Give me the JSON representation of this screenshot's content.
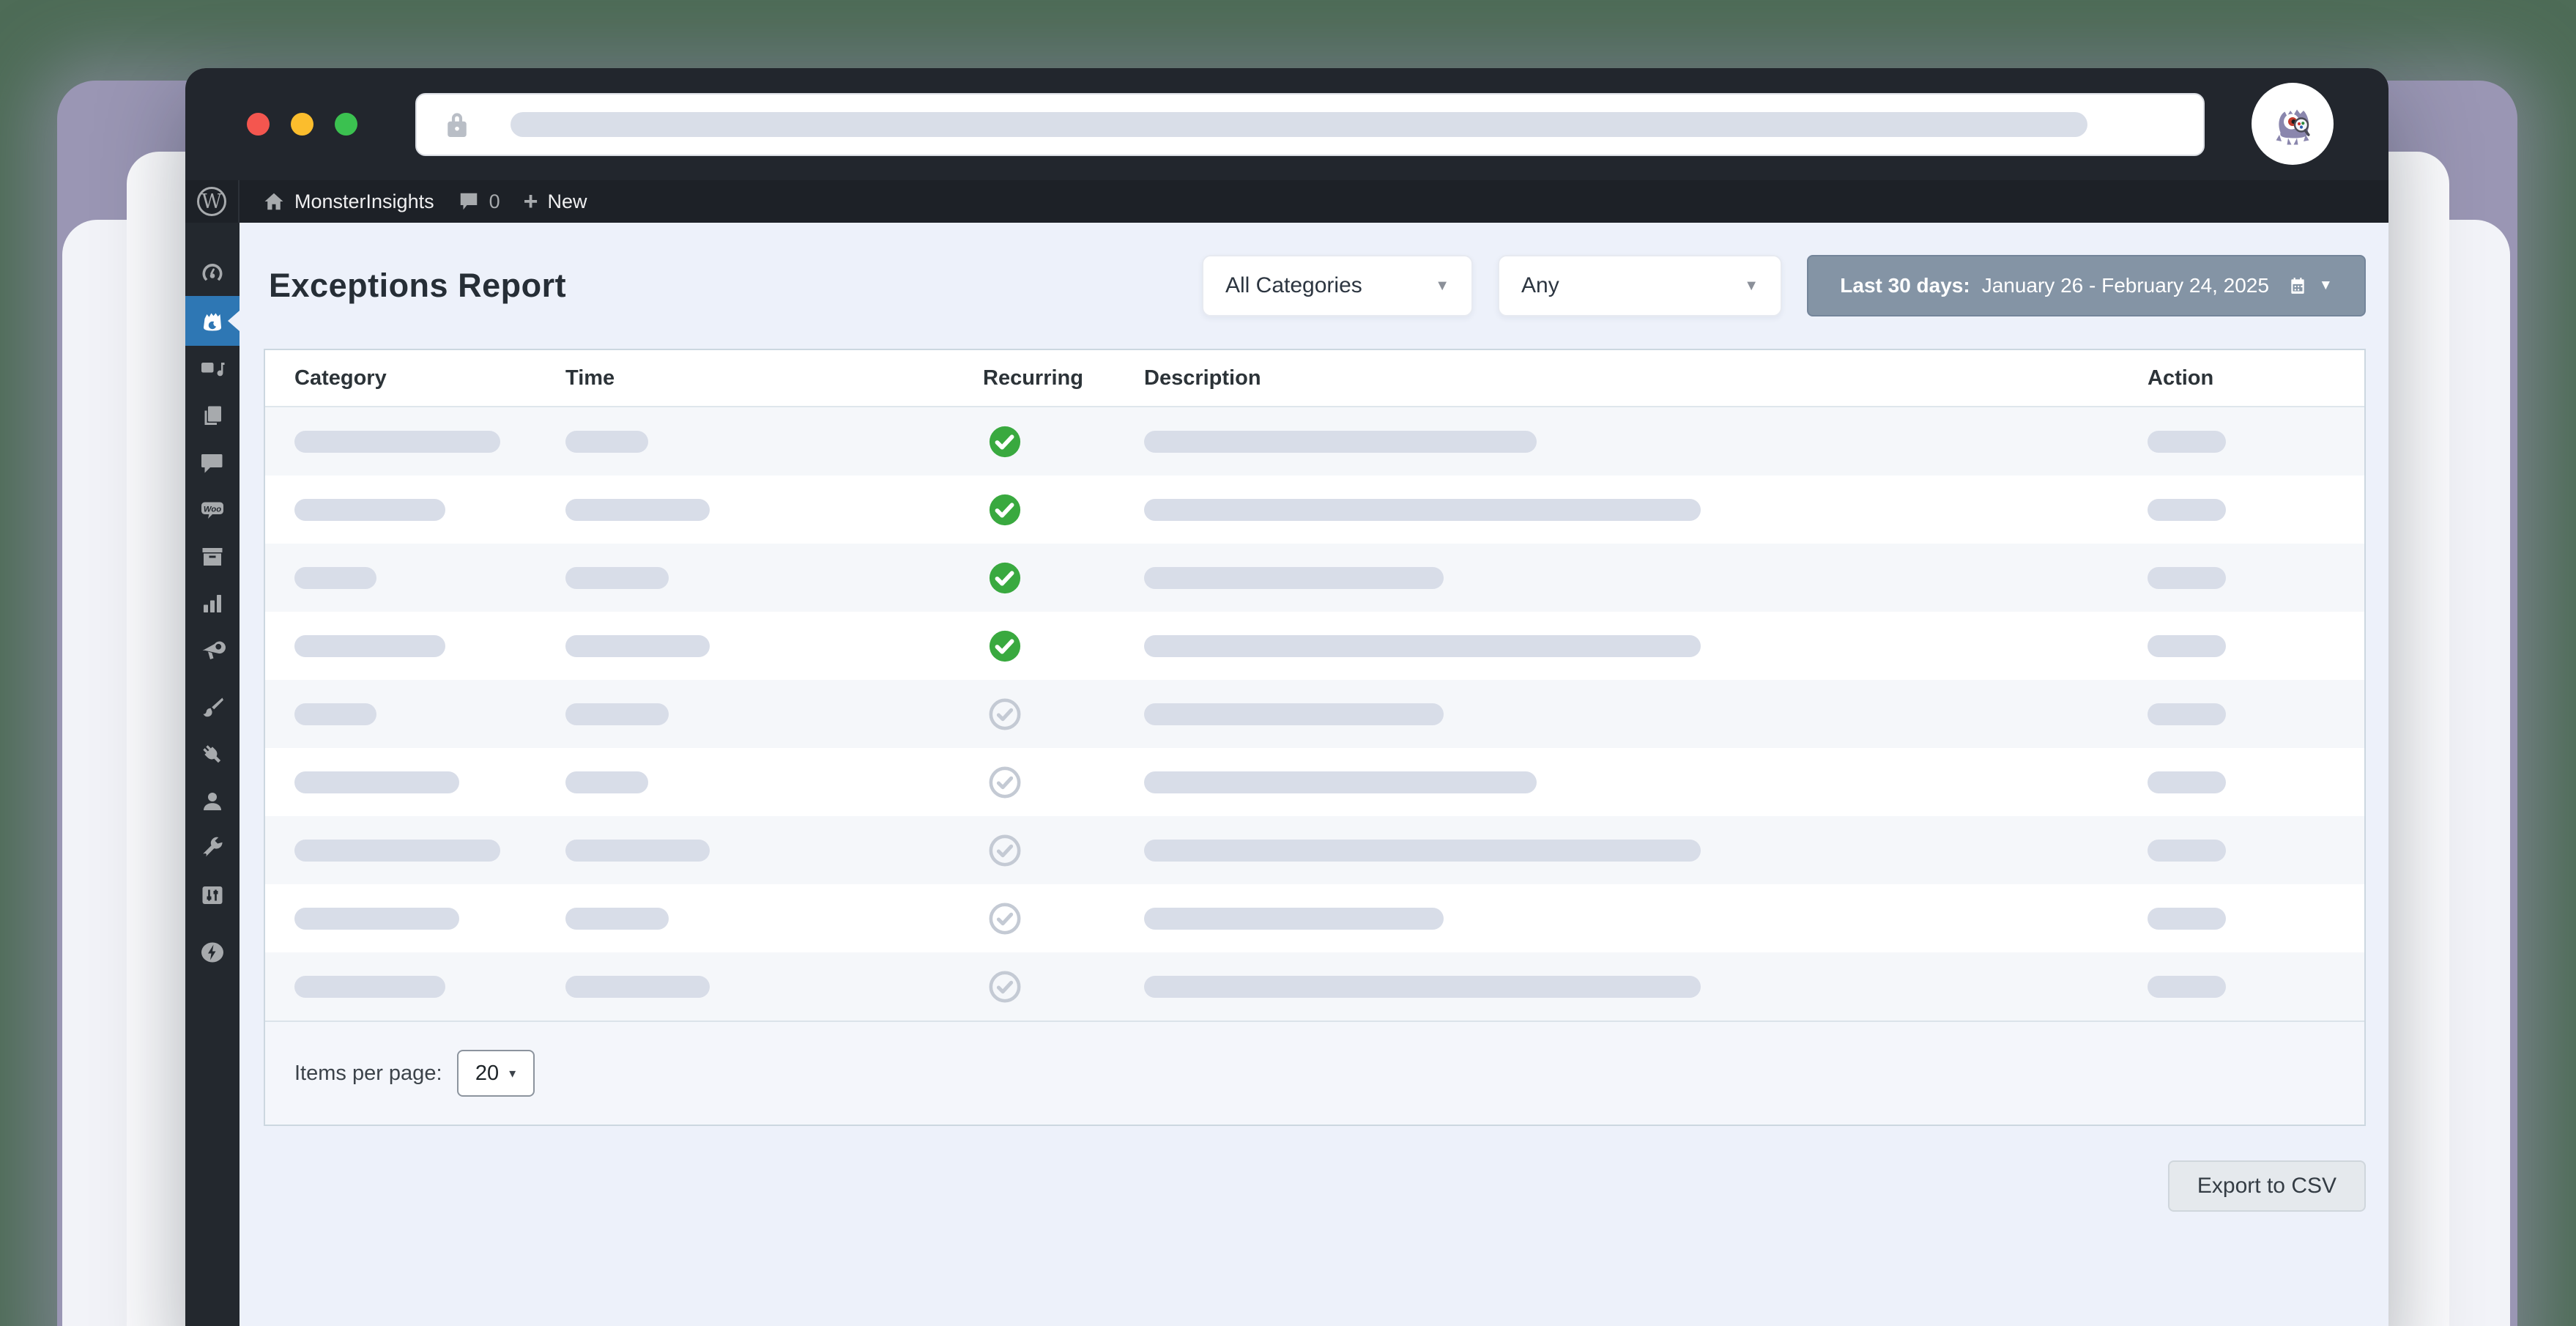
{
  "browser": {
    "traffic_lights": {
      "close": "#f4564f",
      "minimize": "#fbbd2d",
      "zoom": "#3bc150"
    },
    "url_bar": {
      "lock_icon": "lock-icon",
      "placeholder_pill": true
    },
    "avatar_icon": "monsterinsights-mascot"
  },
  "admin_bar": {
    "wp_logo": "wordpress-logo",
    "home_icon": "home-icon",
    "site_name": "MonsterInsights",
    "comments_icon": "comment-icon",
    "comments_count": "0",
    "new_icon": "plus-icon",
    "new_label": "New"
  },
  "sidebar": {
    "items": [
      {
        "name": "dashboard",
        "active": false
      },
      {
        "name": "monsterinsights",
        "active": true
      },
      {
        "name": "media",
        "active": false
      },
      {
        "name": "pages",
        "active": false
      },
      {
        "name": "comments",
        "active": false
      },
      {
        "name": "woocommerce",
        "active": false
      },
      {
        "name": "products",
        "active": false
      },
      {
        "name": "analytics",
        "active": false
      },
      {
        "name": "marketing",
        "active": false
      },
      {
        "name": "appearance",
        "active": false,
        "gap_before": true
      },
      {
        "name": "plugins",
        "active": false
      },
      {
        "name": "users",
        "active": false
      },
      {
        "name": "tools",
        "active": false
      },
      {
        "name": "settings",
        "active": false
      },
      {
        "name": "bolt",
        "active": false,
        "gap_before": true
      }
    ],
    "active_color": "#2e77b4"
  },
  "page": {
    "title": "Exceptions Report",
    "filters": {
      "category_value": "All Categories",
      "type_value": "Any",
      "date_range_prefix": "Last 30 days:",
      "date_range_value": "January 26 - February 24, 2025",
      "calendar_icon": "calendar-icon",
      "date_button_bg": "#8494a5"
    },
    "table": {
      "columns": [
        "Category",
        "Time",
        "Recurring",
        "Description",
        "Action"
      ],
      "recurring_true_color": "#39a93f",
      "recurring_false_color": "#c4cad4",
      "rows": [
        {
          "recurring": true,
          "widths": [
            281,
            113,
            536,
            107
          ]
        },
        {
          "recurring": true,
          "widths": [
            206,
            197,
            760,
            107
          ]
        },
        {
          "recurring": true,
          "widths": [
            112,
            141,
            409,
            107
          ]
        },
        {
          "recurring": true,
          "widths": [
            206,
            197,
            760,
            107
          ]
        },
        {
          "recurring": false,
          "widths": [
            112,
            141,
            409,
            107
          ]
        },
        {
          "recurring": false,
          "widths": [
            225,
            113,
            536,
            107
          ]
        },
        {
          "recurring": false,
          "widths": [
            281,
            197,
            760,
            107
          ]
        },
        {
          "recurring": false,
          "widths": [
            225,
            141,
            409,
            107
          ]
        },
        {
          "recurring": false,
          "widths": [
            206,
            197,
            760,
            107
          ]
        }
      ]
    },
    "pagination": {
      "label": "Items per page:",
      "value": "20"
    },
    "export_label": "Export to CSV"
  }
}
